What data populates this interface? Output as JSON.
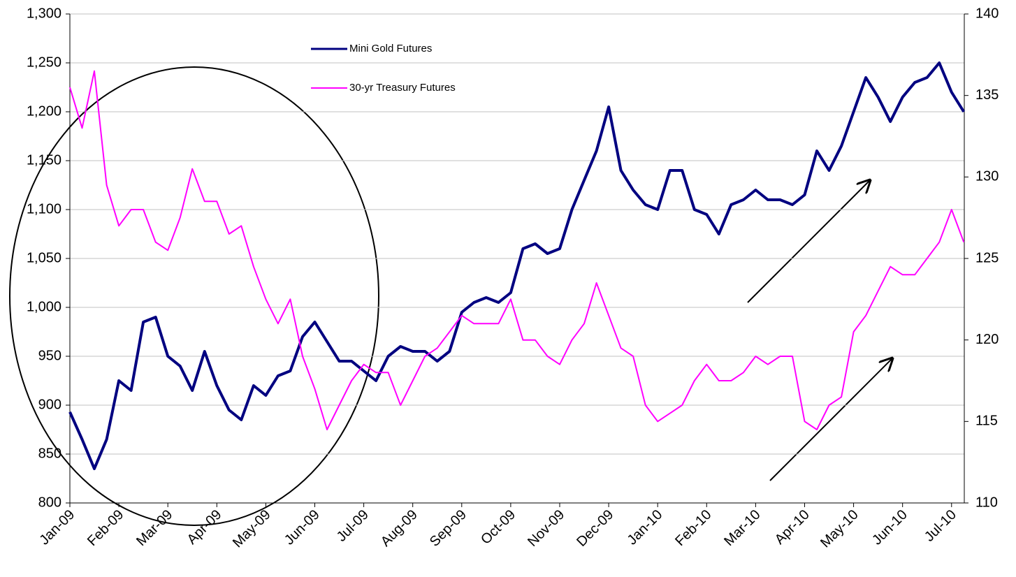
{
  "chart_data": {
    "type": "line",
    "x": [
      0,
      0.25,
      0.5,
      0.75,
      1,
      1.25,
      1.5,
      1.75,
      2,
      2.25,
      2.5,
      2.75,
      3,
      3.25,
      3.5,
      3.75,
      4,
      4.25,
      4.5,
      4.75,
      5,
      5.25,
      5.5,
      5.75,
      6,
      6.25,
      6.5,
      6.75,
      7,
      7.25,
      7.5,
      7.75,
      8,
      8.25,
      8.5,
      8.75,
      9,
      9.25,
      9.5,
      9.75,
      10,
      10.25,
      10.5,
      10.75,
      11,
      11.25,
      11.5,
      11.75,
      12,
      12.25,
      12.5,
      12.75,
      13,
      13.25,
      13.5,
      13.75,
      14,
      14.25,
      14.5,
      14.75,
      15,
      15.25,
      15.5,
      15.75,
      16,
      16.25,
      16.5,
      16.75,
      17,
      17.25,
      17.5,
      17.75,
      18,
      18.25
    ],
    "series": [
      {
        "name": "Mini Gold Futures",
        "color": "#000080",
        "axis": "y",
        "values": [
          893,
          865,
          835,
          865,
          925,
          915,
          985,
          990,
          950,
          940,
          915,
          955,
          920,
          895,
          885,
          920,
          910,
          930,
          935,
          970,
          985,
          965,
          945,
          945,
          935,
          925,
          950,
          960,
          955,
          955,
          945,
          955,
          995,
          1005,
          1010,
          1005,
          1015,
          1060,
          1065,
          1055,
          1060,
          1100,
          1130,
          1160,
          1205,
          1140,
          1120,
          1105,
          1100,
          1140,
          1140,
          1100,
          1095,
          1075,
          1105,
          1110,
          1120,
          1110,
          1110,
          1105,
          1115,
          1160,
          1140,
          1165,
          1200,
          1235,
          1215,
          1190,
          1215,
          1230,
          1235,
          1250,
          1220,
          1200
        ]
      },
      {
        "name": "30-yr Treasury Futures",
        "color": "#ff00ff",
        "axis": "y2",
        "values": [
          135.5,
          133,
          136.5,
          129.5,
          127,
          128,
          128,
          126,
          125.5,
          127.5,
          130.5,
          128.5,
          128.5,
          126.5,
          127,
          124.5,
          122.5,
          121,
          122.5,
          119,
          117,
          114.5,
          116,
          117.5,
          118.5,
          118,
          118,
          116,
          117.5,
          119,
          119.5,
          120.5,
          121.5,
          121,
          121,
          121,
          122.5,
          120,
          120,
          119,
          118.5,
          120,
          121,
          123.5,
          121.5,
          119.5,
          119,
          116,
          115,
          115.5,
          116,
          117.5,
          118.5,
          117.5,
          117.5,
          118,
          119,
          118.5,
          119,
          119,
          115,
          114.5,
          116,
          116.5,
          120.5,
          121.5,
          123,
          124.5,
          124,
          124,
          125,
          126,
          128,
          126
        ]
      }
    ],
    "xlim": [
      0,
      18.26
    ],
    "xticks": [
      {
        "value": 0,
        "label": "Jan-09"
      },
      {
        "value": 1,
        "label": "Feb-09"
      },
      {
        "value": 2,
        "label": "Mar-09"
      },
      {
        "value": 3,
        "label": "Apr-09"
      },
      {
        "value": 4,
        "label": "May-09"
      },
      {
        "value": 5,
        "label": "Jun-09"
      },
      {
        "value": 6,
        "label": "Jul-09"
      },
      {
        "value": 7,
        "label": "Aug-09"
      },
      {
        "value": 8,
        "label": "Sep-09"
      },
      {
        "value": 9,
        "label": "Oct-09"
      },
      {
        "value": 10,
        "label": "Nov-09"
      },
      {
        "value": 11,
        "label": "Dec-09"
      },
      {
        "value": 12,
        "label": "Jan-10"
      },
      {
        "value": 13,
        "label": "Feb-10"
      },
      {
        "value": 14,
        "label": "Mar-10"
      },
      {
        "value": 15,
        "label": "Apr-10"
      },
      {
        "value": 16,
        "label": "May-10"
      },
      {
        "value": 17,
        "label": "Jun-10"
      },
      {
        "value": 18,
        "label": "Jul-10"
      }
    ],
    "ylim": [
      800,
      1300
    ],
    "yticks": [
      800,
      850,
      900,
      950,
      {
        "value": 1000,
        "label": "1,000"
      },
      {
        "value": 1050,
        "label": "1,050"
      },
      {
        "value": 1100,
        "label": "1,100"
      },
      {
        "value": 1150,
        "label": "1,150"
      },
      {
        "value": 1200,
        "label": "1,200"
      },
      {
        "value": 1250,
        "label": "1,250"
      },
      {
        "value": 1300,
        "label": "1,300"
      }
    ],
    "y2lim": [
      110,
      140
    ],
    "y2ticks": [
      110,
      115,
      120,
      125,
      130,
      135,
      140
    ],
    "grid": true
  }
}
